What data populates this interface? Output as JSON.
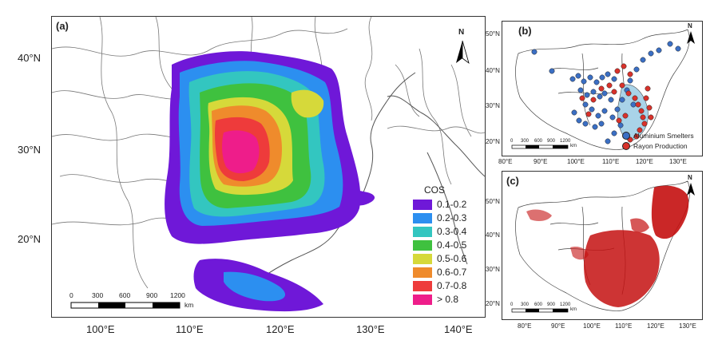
{
  "panel_a": {
    "label": "(a)",
    "x_ticks": [
      "100°E",
      "110°E",
      "120°E",
      "130°E",
      "140°E"
    ],
    "y_ticks": [
      "40°N",
      "30°N",
      "20°N"
    ],
    "legend_title": "COS",
    "legend": [
      {
        "label": "0.1-0.2",
        "color": "#6f18d8"
      },
      {
        "label": "0.2-0.3",
        "color": "#2c8ff0"
      },
      {
        "label": "0.3-0.4",
        "color": "#33c6c0"
      },
      {
        "label": "0.4-0.5",
        "color": "#3fc13f"
      },
      {
        "label": "0.5-0.6",
        "color": "#d6d93a"
      },
      {
        "label": "0.6-0.7",
        "color": "#ef8b2c"
      },
      {
        "label": "0.7-0.8",
        "color": "#ee3b3b"
      },
      {
        "label": "> 0.8",
        "color": "#ee1d8a"
      }
    ],
    "scale_labels": [
      "0",
      "300",
      "600",
      "900",
      "1200"
    ],
    "scale_unit": "km",
    "north_label": "N"
  },
  "panel_b": {
    "label": "(b)",
    "x_ticks": [
      "80°E",
      "90°E",
      "100°E",
      "110°E",
      "120°E",
      "130°E"
    ],
    "y_ticks": [
      "50°N",
      "40°N",
      "30°N",
      "20°N"
    ],
    "legend": [
      {
        "label": "Aluminium Smelters",
        "color": "#3b6fc4"
      },
      {
        "label": "Rayon Production",
        "color": "#d8322b"
      }
    ],
    "scale_labels": [
      "0",
      "300",
      "600",
      "900",
      "1200"
    ],
    "scale_unit": "km",
    "north_label": "N"
  },
  "panel_c": {
    "label": "(c)",
    "x_ticks": [
      "80°E",
      "90°E",
      "100°E",
      "110°E",
      "120°E",
      "130°E"
    ],
    "y_ticks": [
      "50°N",
      "40°N",
      "30°N",
      "20°N"
    ],
    "scale_labels": [
      "0",
      "300",
      "600",
      "900",
      "1200"
    ],
    "scale_unit": "km",
    "north_label": "N",
    "fill_color": "#c41010"
  }
}
